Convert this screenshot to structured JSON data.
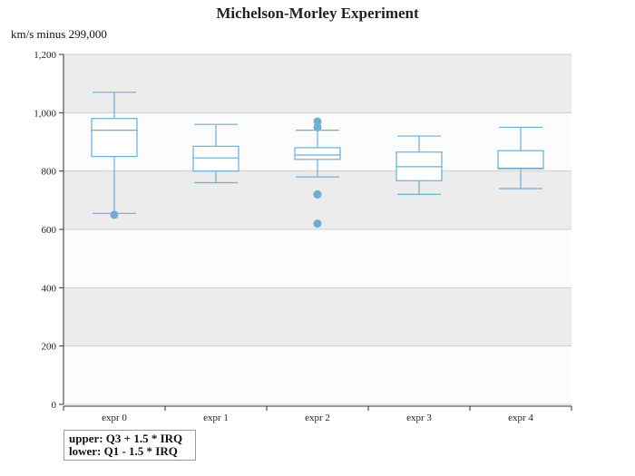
{
  "chart_data": {
    "type": "box",
    "title": "Michelson-Morley Experiment",
    "ylabel": "km/s minus 299,000",
    "ylim": [
      0,
      1200
    ],
    "yticks": [
      0,
      200,
      400,
      600,
      800,
      1000,
      1200
    ],
    "ytick_labels": [
      "0",
      "200",
      "400",
      "600",
      "800",
      "1,000",
      "1,200"
    ],
    "categories": [
      "expr 0",
      "expr 1",
      "expr 2",
      "expr 3",
      "expr 4"
    ],
    "boxes": [
      {
        "low": 655,
        "q1": 850,
        "median": 940,
        "q3": 980,
        "high": 1070,
        "outliers": [
          650
        ]
      },
      {
        "low": 760,
        "q1": 800,
        "median": 845,
        "q3": 885,
        "high": 960,
        "outliers": []
      },
      {
        "low": 780,
        "q1": 840,
        "median": 855,
        "q3": 880,
        "high": 940,
        "outliers": [
          970,
          950,
          720,
          720,
          620
        ]
      },
      {
        "low": 720,
        "q1": 767,
        "median": 815,
        "q3": 865,
        "high": 920,
        "outliers": []
      },
      {
        "low": 740,
        "q1": 808,
        "median": 810,
        "q3": 870,
        "high": 950,
        "outliers": []
      }
    ],
    "grid": true,
    "band_colors": [
      "#fcfcfc",
      "#ececec"
    ],
    "box_color": "#6baed6",
    "legend": {
      "position": "bottom-left",
      "lines": [
        "upper: Q3 + 1.5 * IRQ",
        "lower: Q1 - 1.5 * IRQ"
      ]
    }
  }
}
